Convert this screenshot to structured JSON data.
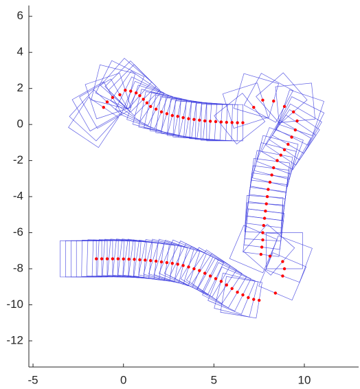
{
  "chart_data": {
    "type": "scatter",
    "xlim": [
      -5.23,
      13.0
    ],
    "ylim": [
      -13.45,
      6.6
    ],
    "xticks": [
      -5,
      0,
      5,
      10
    ],
    "yticks": [
      -12,
      -10,
      -8,
      -6,
      -4,
      -2,
      0,
      2,
      4,
      6
    ],
    "series": [
      {
        "color": "#ff0000",
        "outline_color": "#3333dd",
        "x": [
          -1.1,
          -0.9,
          -0.6,
          -0.2,
          0.1,
          0.4,
          0.7,
          0.9,
          1.1,
          1.3,
          1.5,
          1.8,
          2.1,
          2.4,
          2.7,
          3.0,
          3.3,
          3.6,
          3.9,
          4.2,
          4.5,
          4.8,
          5.1,
          5.4,
          5.7,
          6.0,
          6.3,
          6.6
        ],
        "y": [
          0.95,
          1.25,
          1.5,
          1.65,
          1.9,
          1.85,
          1.75,
          1.6,
          1.4,
          1.2,
          1.0,
          0.85,
          0.7,
          0.6,
          0.5,
          0.45,
          0.38,
          0.32,
          0.28,
          0.24,
          0.2,
          0.18,
          0.16,
          0.14,
          0.12,
          0.11,
          0.1,
          0.1
        ]
      },
      {
        "color": "#ff0000",
        "outline_color": "#3333dd",
        "x": [
          7.2,
          7.7,
          8.3,
          8.9,
          9.4,
          9.6,
          9.5,
          9.3,
          9.1,
          8.9,
          8.7,
          8.5,
          8.3,
          8.2,
          8.1,
          8.0,
          7.95,
          7.9,
          7.85,
          7.8,
          7.75,
          7.7,
          7.7,
          7.65,
          7.6
        ],
        "y": [
          0.95,
          1.35,
          1.3,
          1.0,
          0.7,
          0.2,
          -0.3,
          -0.7,
          -1.1,
          -1.4,
          -1.7,
          -2.0,
          -2.4,
          -2.8,
          -3.2,
          -3.6,
          -4.0,
          -4.4,
          -4.8,
          -5.2,
          -5.6,
          -6.0,
          -6.4,
          -6.8,
          -7.2
        ]
      },
      {
        "color": "#ff0000",
        "outline_color": "#3333dd",
        "x": [
          8.1,
          8.8,
          8.9,
          8.8,
          8.4
        ],
        "y": [
          -7.3,
          -7.6,
          -8.0,
          -8.4,
          -9.35
        ]
      },
      {
        "color": "#ff0000",
        "outline_color": "#3333dd",
        "x": [
          -1.5,
          -1.2,
          -0.9,
          -0.6,
          -0.3,
          0,
          0.3,
          0.6,
          0.9,
          1.2,
          1.5,
          1.8,
          2.1,
          2.4,
          2.7,
          3.0,
          3.3,
          3.6,
          3.9,
          4.2,
          4.5,
          4.8,
          5.1,
          5.4,
          5.7,
          6.0,
          6.3,
          6.6,
          6.9,
          7.2,
          7.5
        ],
        "y": [
          -7.45,
          -7.45,
          -7.45,
          -7.45,
          -7.45,
          -7.46,
          -7.47,
          -7.48,
          -7.5,
          -7.52,
          -7.55,
          -7.58,
          -7.62,
          -7.66,
          -7.7,
          -7.75,
          -7.82,
          -7.9,
          -8.0,
          -8.1,
          -8.25,
          -8.4,
          -8.55,
          -8.7,
          -8.9,
          -9.1,
          -9.3,
          -9.45,
          -9.6,
          -9.7,
          -9.75
        ]
      }
    ]
  }
}
